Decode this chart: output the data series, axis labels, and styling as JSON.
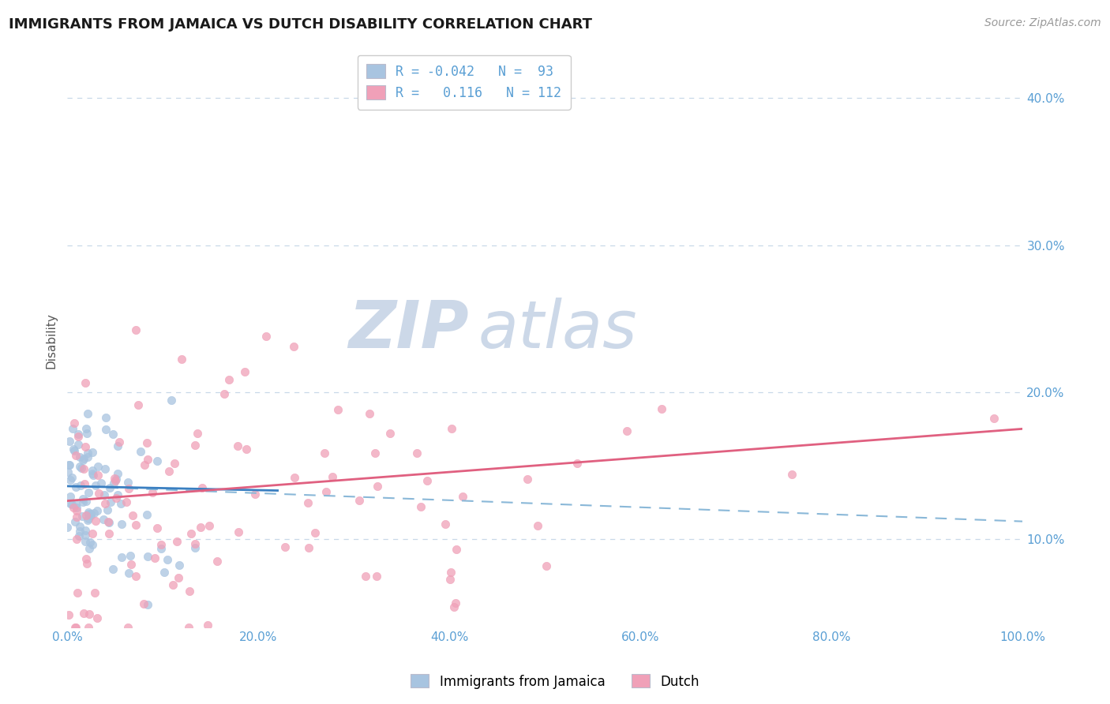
{
  "title": "IMMIGRANTS FROM JAMAICA VS DUTCH DISABILITY CORRELATION CHART",
  "source_text": "Source: ZipAtlas.com",
  "watermark": "ZIPatlas",
  "ylabel": "Disability",
  "legend_labels": [
    "Immigrants from Jamaica",
    "Dutch"
  ],
  "blue_color": "#a8c4e0",
  "pink_color": "#f0a0b8",
  "blue_line_color": "#3a7fc1",
  "blue_dash_color": "#8ab8d8",
  "pink_line_color": "#e06080",
  "R_blue": -0.042,
  "N_blue": 93,
  "R_pink": 0.116,
  "N_pink": 112,
  "xlim": [
    0.0,
    1.0
  ],
  "ylim": [
    0.04,
    0.43
  ],
  "yticks": [
    0.1,
    0.2,
    0.3,
    0.4
  ],
  "xticks": [
    0.0,
    0.2,
    0.4,
    0.6,
    0.8,
    1.0
  ],
  "axis_color": "#5a9fd4",
  "grid_color": "#c8d8e8",
  "background_color": "#ffffff",
  "watermark_color": "#ccd8e8"
}
